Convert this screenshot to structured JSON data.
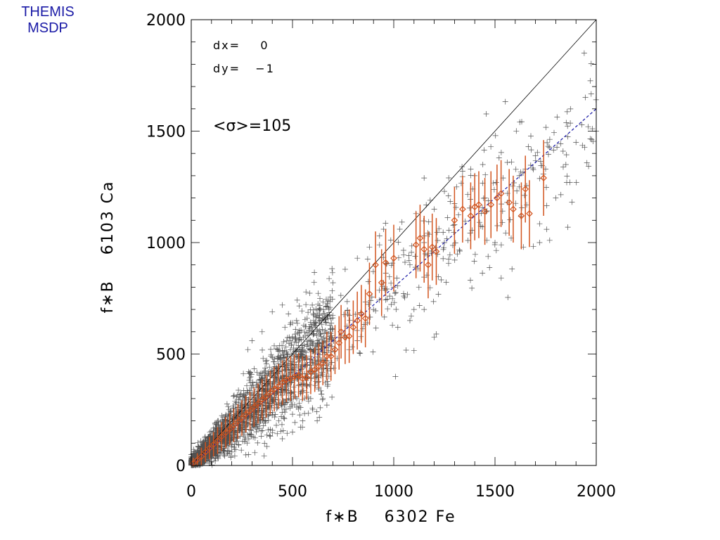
{
  "header": {
    "instrument_line1": "THEMIS",
    "instrument_line2": "MSDP",
    "label_color": "#1a1aa6"
  },
  "chart_data": {
    "type": "scatter",
    "title": "",
    "xlabel": "f∗B    6302 Fe",
    "ylabel": "f∗B    6103 Ca",
    "xlim": [
      0,
      2000
    ],
    "ylim": [
      0,
      2000
    ],
    "x_ticks": [
      "0",
      "500",
      "1000",
      "1500",
      "2000"
    ],
    "y_ticks": [
      "0",
      "500",
      "1000",
      "1500",
      "2000"
    ],
    "grid": false,
    "annotations": {
      "dx": "dx=    0",
      "dy": "dy=   −1",
      "sigma": "<σ>=105"
    },
    "identity_line": {
      "x": [
        0,
        2000
      ],
      "y": [
        0,
        2000
      ],
      "color": "#000000"
    },
    "fit_line": {
      "x": [
        0,
        2000
      ],
      "y": [
        0,
        1600
      ],
      "color": "#1a1aa6",
      "style": "dashed"
    },
    "scatter_color": "#333333",
    "binned_color": "#d2541e",
    "scatter_sample": [
      {
        "x": 1210,
        "y": 590
      },
      {
        "x": 1200,
        "y": 575
      },
      {
        "x": 1100,
        "y": 515
      },
      {
        "x": 1270,
        "y": 1210
      },
      {
        "x": 1310,
        "y": 1250
      },
      {
        "x": 1150,
        "y": 1290
      },
      {
        "x": 1340,
        "y": 1320
      },
      {
        "x": 1540,
        "y": 1290
      },
      {
        "x": 1620,
        "y": 1250
      },
      {
        "x": 1750,
        "y": 1330
      },
      {
        "x": 1900,
        "y": 1450
      },
      {
        "x": 1960,
        "y": 1520
      },
      {
        "x": 2000,
        "y": 1500
      },
      {
        "x": 1870,
        "y": 1270
      },
      {
        "x": 1720,
        "y": 1000
      },
      {
        "x": 1770,
        "y": 1010
      },
      {
        "x": 1640,
        "y": 980
      },
      {
        "x": 1460,
        "y": 1010
      },
      {
        "x": 1030,
        "y": 1060
      },
      {
        "x": 950,
        "y": 1060
      },
      {
        "x": 930,
        "y": 990
      },
      {
        "x": 1110,
        "y": 1130
      },
      {
        "x": 1200,
        "y": 1150
      },
      {
        "x": 1180,
        "y": 1190
      },
      {
        "x": 1250,
        "y": 1230
      },
      {
        "x": 1390,
        "y": 1240
      },
      {
        "x": 1450,
        "y": 1200
      },
      {
        "x": 1560,
        "y": 1180
      },
      {
        "x": 1300,
        "y": 1080
      },
      {
        "x": 1250,
        "y": 1000
      },
      {
        "x": 1150,
        "y": 1000
      },
      {
        "x": 1080,
        "y": 900
      },
      {
        "x": 1150,
        "y": 700
      },
      {
        "x": 1080,
        "y": 650
      },
      {
        "x": 1020,
        "y": 620
      },
      {
        "x": 980,
        "y": 760
      },
      {
        "x": 900,
        "y": 700
      },
      {
        "x": 870,
        "y": 640
      },
      {
        "x": 820,
        "y": 560
      },
      {
        "x": 780,
        "y": 520
      },
      {
        "x": 720,
        "y": 480
      },
      {
        "x": 680,
        "y": 400
      },
      {
        "x": 630,
        "y": 350
      },
      {
        "x": 590,
        "y": 300
      },
      {
        "x": 540,
        "y": 260
      },
      {
        "x": 500,
        "y": 230
      },
      {
        "x": 460,
        "y": 210
      },
      {
        "x": 420,
        "y": 180
      },
      {
        "x": 380,
        "y": 160
      },
      {
        "x": 520,
        "y": 650
      },
      {
        "x": 480,
        "y": 680
      },
      {
        "x": 450,
        "y": 720
      },
      {
        "x": 400,
        "y": 690
      },
      {
        "x": 350,
        "y": 600
      },
      {
        "x": 300,
        "y": 560
      },
      {
        "x": 280,
        "y": 520
      },
      {
        "x": 700,
        "y": 820
      },
      {
        "x": 760,
        "y": 880
      },
      {
        "x": 820,
        "y": 930
      },
      {
        "x": 880,
        "y": 980
      },
      {
        "x": 930,
        "y": 1030
      },
      {
        "x": 1100,
        "y": 700
      },
      {
        "x": 1800,
        "y": 1200
      },
      {
        "x": 1850,
        "y": 1350
      },
      {
        "x": 1700,
        "y": 1390
      },
      {
        "x": 1650,
        "y": 1330
      },
      {
        "x": 1500,
        "y": 1000
      },
      {
        "x": 1580,
        "y": 1020
      },
      {
        "x": 1400,
        "y": 1300
      },
      {
        "x": 1440,
        "y": 1350
      },
      {
        "x": 1520,
        "y": 1380
      },
      {
        "x": 1620,
        "y": 1300
      },
      {
        "x": 1000,
        "y": 800
      },
      {
        "x": 1050,
        "y": 760
      },
      {
        "x": 950,
        "y": 820
      },
      {
        "x": 600,
        "y": 250
      },
      {
        "x": 650,
        "y": 300
      },
      {
        "x": 550,
        "y": 200
      },
      {
        "x": 500,
        "y": 150
      },
      {
        "x": 450,
        "y": 120
      }
    ],
    "scatter_dense": {
      "x_max": 700,
      "slope": 0.85,
      "count": 2400
    },
    "binned_points": [
      {
        "x": 10,
        "y": 10,
        "err": 25
      },
      {
        "x": 30,
        "y": 25,
        "err": 30
      },
      {
        "x": 50,
        "y": 40,
        "err": 40
      },
      {
        "x": 70,
        "y": 60,
        "err": 45
      },
      {
        "x": 90,
        "y": 78,
        "err": 50
      },
      {
        "x": 110,
        "y": 95,
        "err": 55
      },
      {
        "x": 130,
        "y": 112,
        "err": 60
      },
      {
        "x": 150,
        "y": 130,
        "err": 65
      },
      {
        "x": 170,
        "y": 147,
        "err": 70
      },
      {
        "x": 190,
        "y": 163,
        "err": 72
      },
      {
        "x": 210,
        "y": 180,
        "err": 75
      },
      {
        "x": 230,
        "y": 197,
        "err": 78
      },
      {
        "x": 250,
        "y": 213,
        "err": 80
      },
      {
        "x": 270,
        "y": 230,
        "err": 82
      },
      {
        "x": 290,
        "y": 245,
        "err": 85
      },
      {
        "x": 310,
        "y": 262,
        "err": 88
      },
      {
        "x": 330,
        "y": 278,
        "err": 90
      },
      {
        "x": 350,
        "y": 295,
        "err": 92
      },
      {
        "x": 370,
        "y": 310,
        "err": 95
      },
      {
        "x": 390,
        "y": 327,
        "err": 98
      },
      {
        "x": 410,
        "y": 342,
        "err": 100
      },
      {
        "x": 430,
        "y": 355,
        "err": 100
      },
      {
        "x": 450,
        "y": 372,
        "err": 100
      },
      {
        "x": 470,
        "y": 385,
        "err": 100
      },
      {
        "x": 490,
        "y": 390,
        "err": 100
      },
      {
        "x": 510,
        "y": 398,
        "err": 100
      },
      {
        "x": 530,
        "y": 405,
        "err": 100
      },
      {
        "x": 550,
        "y": 390,
        "err": 100
      },
      {
        "x": 570,
        "y": 395,
        "err": 100
      },
      {
        "x": 590,
        "y": 420,
        "err": 100
      },
      {
        "x": 610,
        "y": 430,
        "err": 100
      },
      {
        "x": 630,
        "y": 445,
        "err": 100
      },
      {
        "x": 650,
        "y": 460,
        "err": 100
      },
      {
        "x": 670,
        "y": 490,
        "err": 110
      },
      {
        "x": 690,
        "y": 490,
        "err": 110
      },
      {
        "x": 710,
        "y": 520,
        "err": 110
      },
      {
        "x": 730,
        "y": 550,
        "err": 120
      },
      {
        "x": 740,
        "y": 600,
        "err": 120
      },
      {
        "x": 760,
        "y": 575,
        "err": 120
      },
      {
        "x": 780,
        "y": 580,
        "err": 120
      },
      {
        "x": 800,
        "y": 620,
        "err": 120
      },
      {
        "x": 820,
        "y": 650,
        "err": 130
      },
      {
        "x": 840,
        "y": 680,
        "err": 130
      },
      {
        "x": 860,
        "y": 660,
        "err": 130
      },
      {
        "x": 880,
        "y": 770,
        "err": 140
      },
      {
        "x": 910,
        "y": 900,
        "err": 150
      },
      {
        "x": 940,
        "y": 820,
        "err": 150
      },
      {
        "x": 960,
        "y": 910,
        "err": 150
      },
      {
        "x": 1000,
        "y": 930,
        "err": 150
      },
      {
        "x": 1110,
        "y": 990,
        "err": 150
      },
      {
        "x": 1130,
        "y": 1020,
        "err": 150
      },
      {
        "x": 1150,
        "y": 970,
        "err": 150
      },
      {
        "x": 1170,
        "y": 900,
        "err": 150
      },
      {
        "x": 1190,
        "y": 980,
        "err": 150
      },
      {
        "x": 1210,
        "y": 960,
        "err": 150
      },
      {
        "x": 1300,
        "y": 1100,
        "err": 150
      },
      {
        "x": 1340,
        "y": 1150,
        "err": 150
      },
      {
        "x": 1380,
        "y": 1120,
        "err": 150
      },
      {
        "x": 1400,
        "y": 1160,
        "err": 150
      },
      {
        "x": 1420,
        "y": 1170,
        "err": 150
      },
      {
        "x": 1450,
        "y": 1140,
        "err": 150
      },
      {
        "x": 1480,
        "y": 1170,
        "err": 150
      },
      {
        "x": 1510,
        "y": 1200,
        "err": 150
      },
      {
        "x": 1530,
        "y": 1220,
        "err": 150
      },
      {
        "x": 1570,
        "y": 1180,
        "err": 150
      },
      {
        "x": 1590,
        "y": 1150,
        "err": 150
      },
      {
        "x": 1630,
        "y": 1120,
        "err": 150
      },
      {
        "x": 1650,
        "y": 1240,
        "err": 150
      },
      {
        "x": 1670,
        "y": 1130,
        "err": 150
      },
      {
        "x": 1740,
        "y": 1290,
        "err": 170
      }
    ]
  }
}
